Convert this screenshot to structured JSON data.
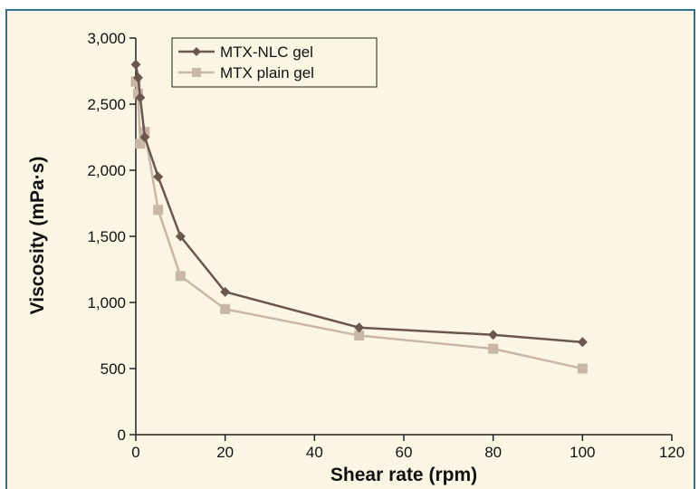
{
  "chart_data": {
    "type": "line",
    "title": "",
    "xlabel": "Shear rate (rpm)",
    "ylabel": "Viscosity (mPa·s)",
    "xlim": [
      0,
      120
    ],
    "ylim": [
      0,
      3000
    ],
    "x_ticks": [
      "0",
      "20",
      "40",
      "60",
      "80",
      "100",
      "120"
    ],
    "y_ticks": [
      "0",
      "500",
      "1,000",
      "1,500",
      "2,000",
      "2,500",
      "3,000"
    ],
    "x_tick_values": [
      0,
      20,
      40,
      60,
      80,
      100,
      120
    ],
    "y_tick_values": [
      0,
      500,
      1000,
      1500,
      2000,
      2500,
      3000
    ],
    "legend_position": "top-left",
    "grid": false,
    "series": [
      {
        "name": "MTX-NLC gel",
        "color": "#6b5650",
        "marker": "diamond",
        "x": [
          0,
          0.5,
          1,
          2,
          5,
          10,
          20,
          50,
          80,
          100
        ],
        "y": [
          2800,
          2700,
          2550,
          2250,
          1950,
          1500,
          1080,
          810,
          755,
          700
        ]
      },
      {
        "name": "MTX plain gel",
        "color": "#c9b7a5",
        "marker": "square",
        "x": [
          0,
          0.5,
          1,
          2,
          5,
          10,
          20,
          50,
          80,
          100
        ],
        "y": [
          2670,
          2580,
          2200,
          2290,
          1700,
          1200,
          950,
          750,
          650,
          500
        ]
      }
    ]
  }
}
